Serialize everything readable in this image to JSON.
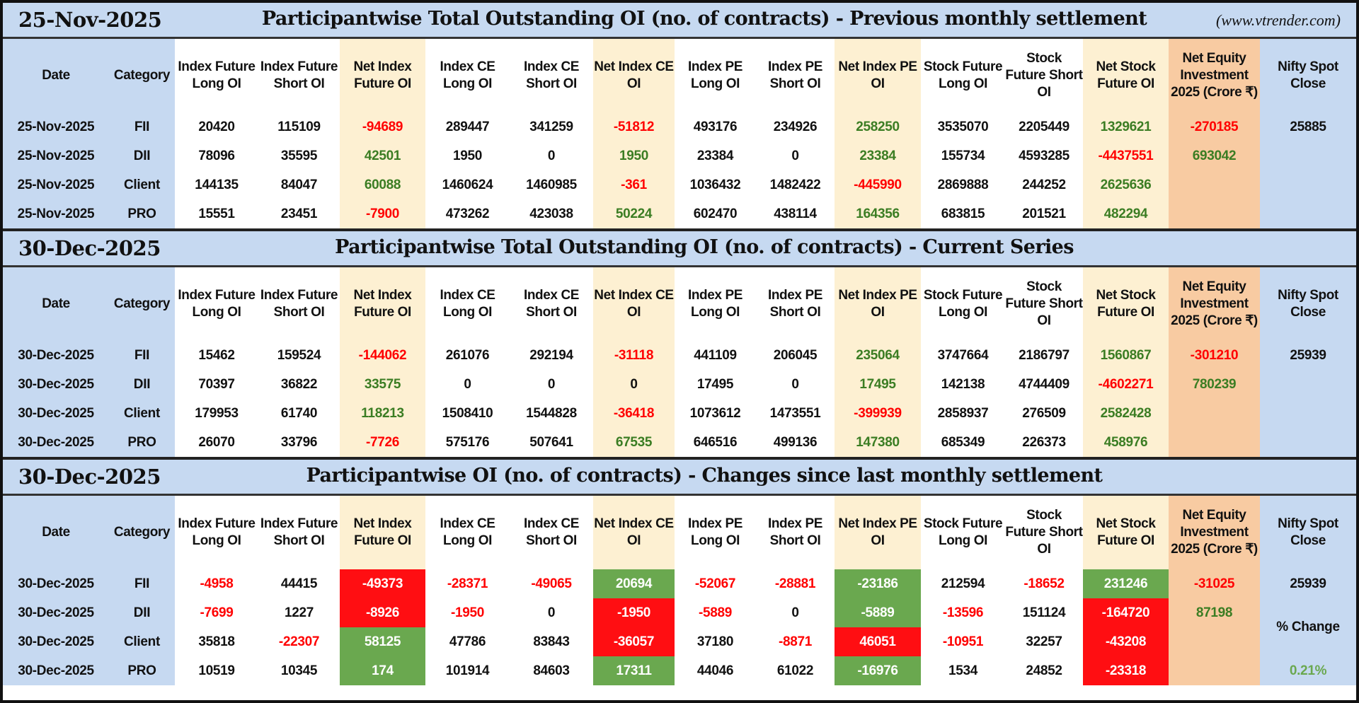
{
  "site": "(www.vtrender.com)",
  "columns": [
    "Date",
    "Category",
    "Index Future Long OI",
    "Index Future Short OI",
    "Net Index Future OI",
    "Index CE Long OI",
    "Index CE Short OI",
    "Net Index CE OI",
    "Index PE Long OI",
    "Index PE Short OI",
    "Net Index PE OI",
    "Stock Future Long OI",
    "Stock Future Short OI",
    "Net Stock Future OI",
    "Net Equity Investment 2025 (Crore ₹)",
    "Nifty Spot Close"
  ],
  "colors": {
    "header_blue": "#c6d9f1",
    "net_yellow": "#fdf0d2",
    "equity_orange": "#f8cba2",
    "negative_red": "#ff0000",
    "positive_green": "#3b7d23",
    "cell_green_bg": "#6aa84f",
    "cell_red_bg": "#ff0e12"
  },
  "sections": [
    {
      "date": "25-Nov-2025",
      "title": "Participantwise Total Outstanding OI (no. of contracts) - Previous monthly settlement",
      "rows": [
        {
          "date": "25-Nov-2025",
          "category": "FII",
          "values": [
            "20420",
            "115109",
            "-94689",
            "289447",
            "341259",
            "-51812",
            "493176",
            "234926",
            "258250",
            "3535070",
            "2205449",
            "1329621",
            "-270185",
            "25885"
          ],
          "tones": "kkrkkrkkgkkgrk",
          "bg": ""
        },
        {
          "date": "25-Nov-2025",
          "category": "DII",
          "values": [
            "78096",
            "35595",
            "42501",
            "1950",
            "0",
            "1950",
            "23384",
            "0",
            "23384",
            "155734",
            "4593285",
            "-4437551",
            "693042",
            ""
          ],
          "tones": "kkgkkgkkgkkrgk",
          "bg": ""
        },
        {
          "date": "25-Nov-2025",
          "category": "Client",
          "values": [
            "144135",
            "84047",
            "60088",
            "1460624",
            "1460985",
            "-361",
            "1036432",
            "1482422",
            "-445990",
            "2869888",
            "244252",
            "2625636",
            "",
            ""
          ],
          "tones": "kkgkkrkkrkkgkk",
          "bg": ""
        },
        {
          "date": "25-Nov-2025",
          "category": "PRO",
          "values": [
            "15551",
            "23451",
            "-7900",
            "473262",
            "423038",
            "50224",
            "602470",
            "438114",
            "164356",
            "683815",
            "201521",
            "482294",
            "",
            ""
          ],
          "tones": "kkrkkgkkgkkgkk",
          "bg": ""
        }
      ]
    },
    {
      "date": "30-Dec-2025",
      "title": "Participantwise Total Outstanding OI (no. of contracts) - Current Series",
      "rows": [
        {
          "date": "30-Dec-2025",
          "category": "FII",
          "values": [
            "15462",
            "159524",
            "-144062",
            "261076",
            "292194",
            "-31118",
            "441109",
            "206045",
            "235064",
            "3747664",
            "2186797",
            "1560867",
            "-301210",
            "25939"
          ],
          "tones": "kkrkkrkkgkkgrk",
          "bg": ""
        },
        {
          "date": "30-Dec-2025",
          "category": "DII",
          "values": [
            "70397",
            "36822",
            "33575",
            "0",
            "0",
            "0",
            "17495",
            "0",
            "17495",
            "142138",
            "4744409",
            "-4602271",
            "780239",
            ""
          ],
          "tones": "kkgkkkkkgkkrgk",
          "bg": ""
        },
        {
          "date": "30-Dec-2025",
          "category": "Client",
          "values": [
            "179953",
            "61740",
            "118213",
            "1508410",
            "1544828",
            "-36418",
            "1073612",
            "1473551",
            "-399939",
            "2858937",
            "276509",
            "2582428",
            "",
            ""
          ],
          "tones": "kkgkkrkkrkkgkk",
          "bg": ""
        },
        {
          "date": "30-Dec-2025",
          "category": "PRO",
          "values": [
            "26070",
            "33796",
            "-7726",
            "575176",
            "507641",
            "67535",
            "646516",
            "499136",
            "147380",
            "685349",
            "226373",
            "458976",
            "",
            ""
          ],
          "tones": "kkrkkgkkgkkgkk",
          "bg": ""
        }
      ]
    },
    {
      "date": "30-Dec-2025",
      "title": "Participantwise OI (no. of contracts) - Changes since last monthly settlement",
      "pct_change_label": "% Change",
      "pct_change_value": "0.21%",
      "rows": [
        {
          "date": "30-Dec-2025",
          "category": "FII",
          "values": [
            "-4958",
            "44415",
            "-49373",
            "-28371",
            "-49065",
            "20694",
            "-52067",
            "-28881",
            "-23186",
            "212594",
            "-18652",
            "231246",
            "-31025",
            "25939"
          ],
          "tones": "rkkrrkrrkkrkrk",
          "bg": "--R--G--G--G--"
        },
        {
          "date": "30-Dec-2025",
          "category": "DII",
          "values": [
            "-7699",
            "1227",
            "-8926",
            "-1950",
            "0",
            "-1950",
            "-5889",
            "0",
            "-5889",
            "-13596",
            "151124",
            "-164720",
            "87198",
            ""
          ],
          "tones": "rkkrkkrkkrkkgk",
          "bg": "--R--R--G--R--"
        },
        {
          "date": "30-Dec-2025",
          "category": "Client",
          "values": [
            "35818",
            "-22307",
            "58125",
            "47786",
            "83843",
            "-36057",
            "37180",
            "-8871",
            "46051",
            "-10951",
            "32257",
            "-43208",
            "",
            ""
          ],
          "tones": "krkkkkkrkrkkkk",
          "bg": "--G--R--R--R--"
        },
        {
          "date": "30-Dec-2025",
          "category": "PRO",
          "values": [
            "10519",
            "10345",
            "174",
            "101914",
            "84603",
            "17311",
            "44046",
            "61022",
            "-16976",
            "1534",
            "24852",
            "-23318",
            "",
            ""
          ],
          "tones": "kkkkkkkkkkkkkk",
          "bg": "--G--G--G--R--"
        }
      ]
    }
  ]
}
